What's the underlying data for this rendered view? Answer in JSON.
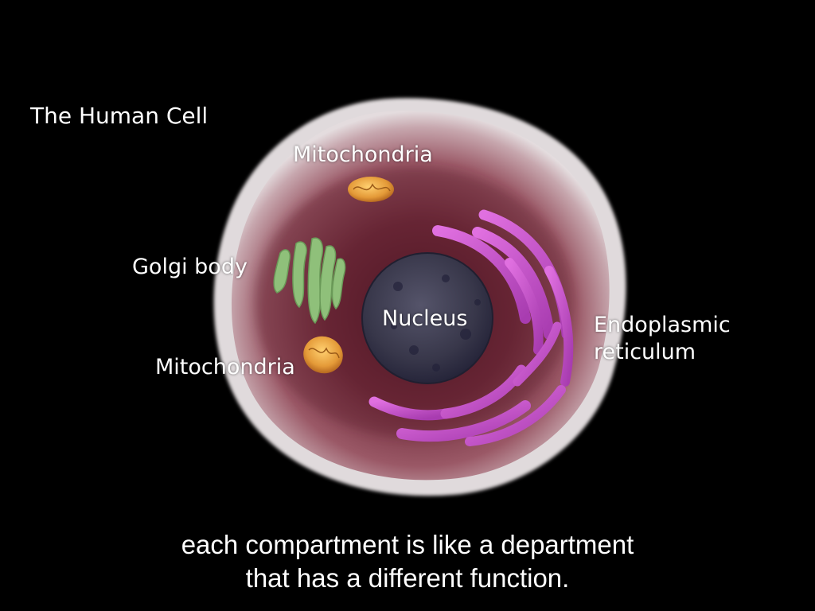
{
  "title": "The Human Cell",
  "labels": {
    "mitochondria_top": "Mitochondria",
    "golgi": "Golgi body",
    "nucleus": "Nucleus",
    "mitochondria_bottom": "Mitochondria",
    "er_line1": "Endoplasmic",
    "er_line2": "reticulum"
  },
  "subtitle": {
    "line1": "each compartment is like a department",
    "line2": "that has a different function."
  },
  "colors": {
    "background": "#000000",
    "membrane": "#d8d4d6",
    "cytoplasm": "#6e2a3a",
    "nucleus": "#3c3a4c",
    "golgi": "#8fc07a",
    "mitochondria": "#e8a040",
    "er": "#c050c8",
    "text": "#ffffff"
  }
}
